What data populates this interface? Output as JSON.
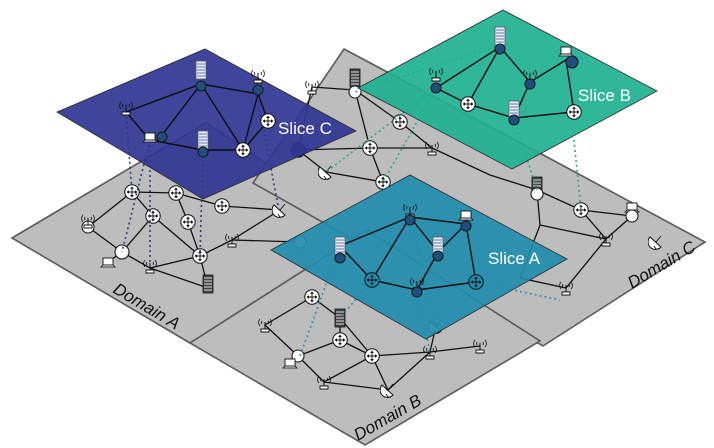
{
  "domains": [
    {
      "id": "a",
      "label": "Domain A"
    },
    {
      "id": "b",
      "label": "Domain B"
    },
    {
      "id": "c",
      "label": "Domain C"
    }
  ],
  "slices": [
    {
      "id": "a",
      "label": "Slice A",
      "color": "#1f8cad"
    },
    {
      "id": "b",
      "label": "Slice B",
      "color": "#1eb08f"
    },
    {
      "id": "c",
      "label": "Slice C",
      "color": "#2f3592"
    }
  ],
  "colors": {
    "domain_fill": "#bdbdbd",
    "slice_node_fill": "#1f4f7c",
    "mapping_a": "#2f8fa8",
    "mapping_b": "#23a88a",
    "mapping_c": "#2e3a8c"
  },
  "node_types": [
    "router-icon",
    "antenna-icon",
    "server-rack-icon",
    "laptop-icon",
    "satellite-dish-icon",
    "plain-node"
  ]
}
